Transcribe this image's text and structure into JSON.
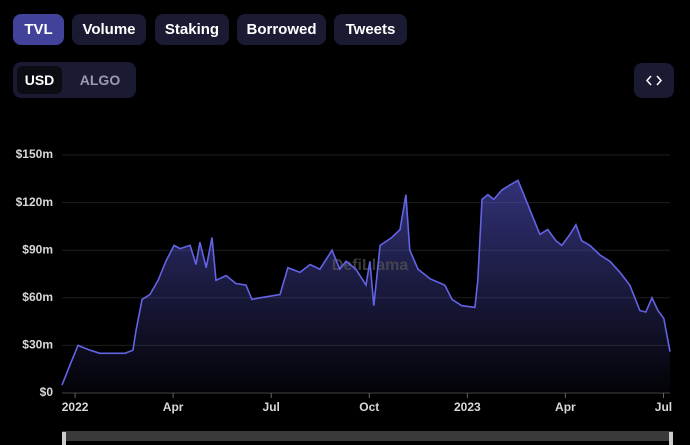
{
  "tabs": [
    "TVL",
    "Volume",
    "Staking",
    "Borrowed",
    "Tweets"
  ],
  "currency": [
    "USD",
    "ALGO"
  ],
  "chart_data": {
    "type": "area",
    "watermark": "DefiLlama",
    "color": "#6363e6",
    "grid": true,
    "x": [
      -0.4,
      -0.15,
      0.09,
      0.21,
      0.46,
      0.76,
      1.07,
      1.53,
      1.77,
      1.87,
      2.05,
      2.29,
      2.54,
      2.78,
      3.03,
      3.21,
      3.52,
      3.7,
      3.82,
      4.01,
      4.19,
      4.31,
      4.62,
      4.92,
      5.23,
      5.41,
      5.66,
      5.96,
      6.27,
      6.51,
      6.88,
      7.19,
      7.49,
      7.86,
      8.1,
      8.29,
      8.59,
      8.9,
      9.02,
      9.14,
      9.33,
      9.69,
      9.94,
      10.12,
      10.24,
      10.49,
      10.86,
      11.31,
      11.53,
      11.83,
      12.23,
      12.32,
      12.45,
      12.63,
      12.81,
      13.06,
      13.3,
      13.55,
      13.79,
      13.98,
      14.22,
      14.46,
      14.71,
      14.89,
      15.14,
      15.32,
      15.5,
      15.75,
      16.06,
      16.36,
      16.67,
      16.97,
      17.28,
      17.46,
      17.65,
      17.83,
      18.01,
      18.2
    ],
    "values": [
      5,
      18,
      30,
      29,
      27,
      25,
      25,
      25,
      27,
      40,
      59,
      62,
      71,
      83,
      93,
      91,
      93,
      81,
      95,
      79,
      98,
      71,
      74,
      69,
      68,
      59,
      60,
      61,
      62,
      79,
      76,
      81,
      78,
      90,
      78,
      83,
      78,
      68,
      83,
      55,
      93,
      98,
      103,
      125,
      90,
      78,
      72,
      68,
      59,
      55,
      54,
      71,
      122,
      125,
      122,
      128,
      131,
      134,
      122,
      112,
      100,
      103,
      96,
      93,
      100,
      106,
      96,
      93,
      87,
      83,
      76,
      68,
      52,
      51,
      60,
      52,
      47,
      26
    ],
    "xlim": [
      -0.4,
      18.2
    ],
    "xticks": [
      {
        "value": 0,
        "label": "2022"
      },
      {
        "value": 3,
        "label": "Apr"
      },
      {
        "value": 6,
        "label": "Jul"
      },
      {
        "value": 9,
        "label": "Oct"
      },
      {
        "value": 12,
        "label": "2023"
      },
      {
        "value": 15,
        "label": "Apr"
      },
      {
        "value": 18,
        "label": "Jul"
      }
    ],
    "ylim": [
      0,
      150
    ],
    "yticks": [
      {
        "value": 0,
        "label": "$0"
      },
      {
        "value": 30,
        "label": "$30m"
      },
      {
        "value": 60,
        "label": "$60m"
      },
      {
        "value": 90,
        "label": "$90m"
      },
      {
        "value": 120,
        "label": "$120m"
      },
      {
        "value": 150,
        "label": "$150m"
      }
    ]
  }
}
